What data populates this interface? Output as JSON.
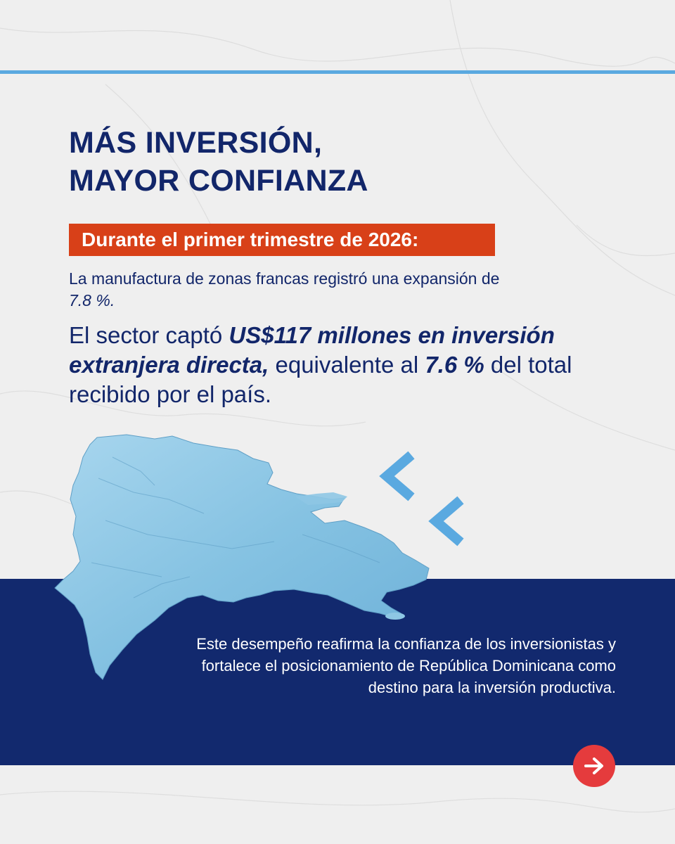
{
  "colors": {
    "navy": "#12266a",
    "banner_red": "#d84018",
    "accent_blue": "#5aa9e0",
    "map_blue": "#8ec7e4",
    "button_red": "#e53b3d",
    "paper": "#efefef"
  },
  "title": {
    "line1": "MÁS INVERSIÓN,",
    "line2": "MAYOR CONFIANZA"
  },
  "banner": "Durante el primer trimestre de 2026:",
  "fact1": {
    "text_a": "La manufactura de zonas francas registró una expansión de ",
    "value": "7.8 %."
  },
  "fact2": {
    "text_a": "El sector captó ",
    "highlight": "US$117 millones en inversión extranjera directa,",
    "text_b": " equivalente al ",
    "value": "7.6 %",
    "text_c": " del total recibido por el país."
  },
  "closing": "Este desempeño reafirma la confianza de los inversionistas y fortalece el posicionamiento de República Dominicana como destino para la inversión productiva.",
  "icons": {
    "map": "dominican-republic-map",
    "arrows": "left-arrow-icon",
    "next": "arrow-right-icon"
  }
}
